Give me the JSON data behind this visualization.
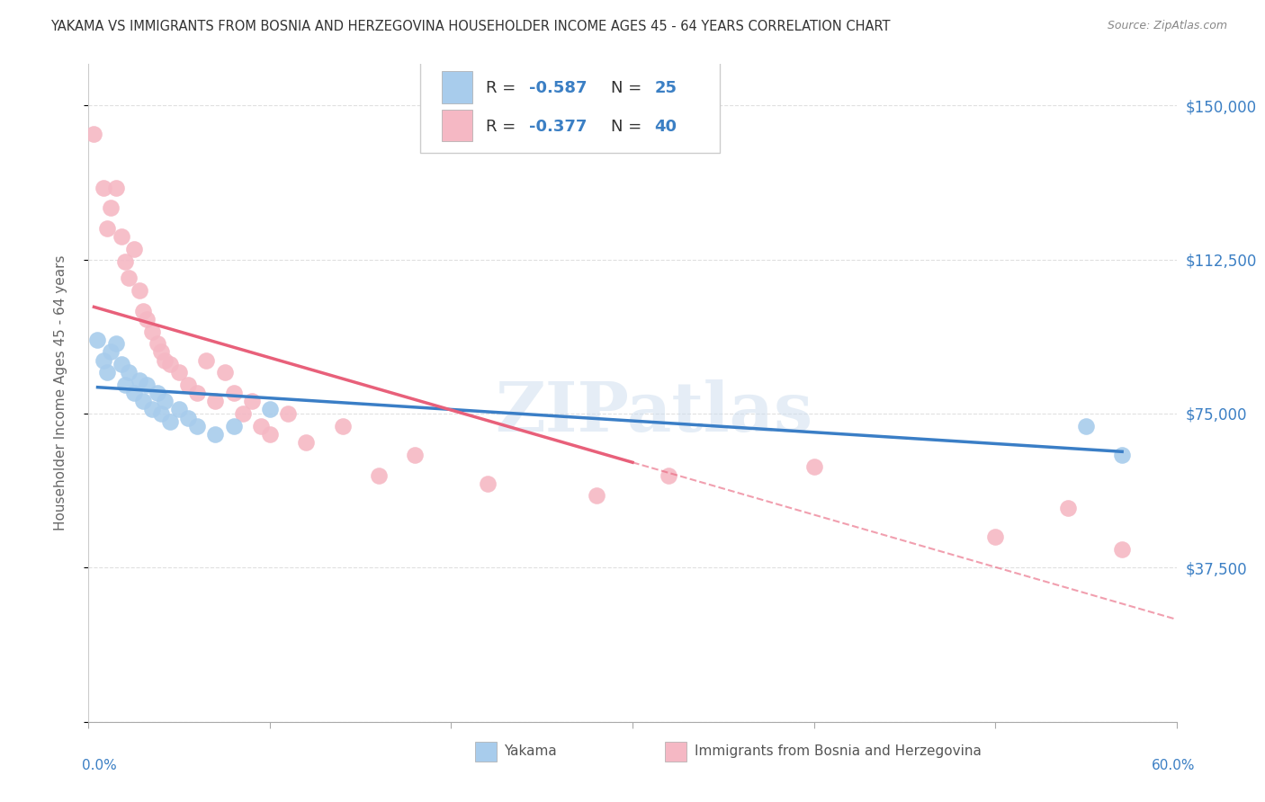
{
  "title": "YAKAMA VS IMMIGRANTS FROM BOSNIA AND HERZEGOVINA HOUSEHOLDER INCOME AGES 45 - 64 YEARS CORRELATION CHART",
  "source": "Source: ZipAtlas.com",
  "ylabel": "Householder Income Ages 45 - 64 years",
  "xlim": [
    0.0,
    0.6
  ],
  "ylim": [
    0,
    160000
  ],
  "yticks": [
    0,
    37500,
    75000,
    112500,
    150000
  ],
  "ytick_labels": [
    "",
    "$37,500",
    "$75,000",
    "$112,500",
    "$150,000"
  ],
  "watermark": "ZIPatlas",
  "legend_r1": "-0.587",
  "legend_n1": "25",
  "legend_r2": "-0.377",
  "legend_n2": "40",
  "series1_label": "Yakama",
  "series2_label": "Immigrants from Bosnia and Herzegovina",
  "blue_color": "#A8CCEC",
  "pink_color": "#F5B8C4",
  "blue_line_color": "#3A7EC6",
  "pink_line_color": "#E8607A",
  "title_color": "#444444",
  "axis_label_color": "#666666",
  "tick_color_right": "#3B7FC4",
  "background_color": "#FFFFFF",
  "grid_color": "#CCCCCC",
  "yakama_x": [
    0.005,
    0.008,
    0.01,
    0.012,
    0.015,
    0.018,
    0.02,
    0.022,
    0.025,
    0.028,
    0.03,
    0.032,
    0.035,
    0.038,
    0.04,
    0.042,
    0.045,
    0.05,
    0.055,
    0.06,
    0.07,
    0.08,
    0.1,
    0.55,
    0.57
  ],
  "yakama_y": [
    93000,
    88000,
    85000,
    90000,
    92000,
    87000,
    82000,
    85000,
    80000,
    83000,
    78000,
    82000,
    76000,
    80000,
    75000,
    78000,
    73000,
    76000,
    74000,
    72000,
    70000,
    72000,
    76000,
    72000,
    65000
  ],
  "bosnia_x": [
    0.003,
    0.008,
    0.01,
    0.012,
    0.015,
    0.018,
    0.02,
    0.022,
    0.025,
    0.028,
    0.03,
    0.032,
    0.035,
    0.038,
    0.04,
    0.042,
    0.045,
    0.05,
    0.055,
    0.06,
    0.065,
    0.07,
    0.075,
    0.08,
    0.085,
    0.09,
    0.095,
    0.1,
    0.11,
    0.12,
    0.14,
    0.16,
    0.18,
    0.22,
    0.28,
    0.32,
    0.4,
    0.5,
    0.54,
    0.57
  ],
  "bosnia_y": [
    143000,
    130000,
    120000,
    125000,
    130000,
    118000,
    112000,
    108000,
    115000,
    105000,
    100000,
    98000,
    95000,
    92000,
    90000,
    88000,
    87000,
    85000,
    82000,
    80000,
    88000,
    78000,
    85000,
    80000,
    75000,
    78000,
    72000,
    70000,
    75000,
    68000,
    72000,
    60000,
    65000,
    58000,
    55000,
    60000,
    62000,
    45000,
    52000,
    42000
  ]
}
